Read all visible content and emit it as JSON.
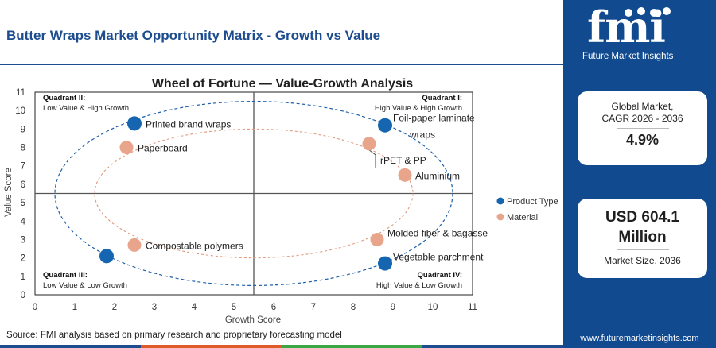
{
  "header": {
    "title": "Butter Wraps Market Opportunity Matrix - Growth vs Value"
  },
  "chart_data": {
    "type": "scatter",
    "title": "Wheel of Fortune — Value-Growth Analysis",
    "xlabel": "Growth Score",
    "ylabel": "Value Score",
    "xlim": [
      0,
      11
    ],
    "ylim": [
      0,
      11
    ],
    "x_ticks": [
      "0",
      "1",
      "2",
      "3",
      "4",
      "5",
      "6",
      "7",
      "8",
      "9",
      "10",
      "11"
    ],
    "y_ticks": [
      "0",
      "1",
      "2",
      "3",
      "4",
      "5",
      "6",
      "7",
      "8",
      "9",
      "10",
      "11"
    ],
    "divider_x": 5.5,
    "divider_y": 5.5,
    "grid": false,
    "legend_position": "right",
    "series": [
      {
        "name": "Product Type",
        "color": "#1565b0",
        "points": [
          {
            "label": "Printed brand wraps",
            "x": 2.5,
            "y": 9.3
          },
          {
            "label": "Foil-paper laminate wraps",
            "x": 8.8,
            "y": 9.2
          },
          {
            "label": "Compostable polymers",
            "x": 1.8,
            "y": 2.1
          },
          {
            "label": "Vegetable parchment",
            "x": 8.8,
            "y": 1.7
          }
        ]
      },
      {
        "name": "Material",
        "color": "#e8a58c",
        "points": [
          {
            "label": "Paperboard",
            "x": 2.3,
            "y": 8.0
          },
          {
            "label": "rPET & PP",
            "x": 8.4,
            "y": 8.2
          },
          {
            "label": "Aluminium",
            "x": 9.3,
            "y": 6.5
          },
          {
            "label": "Compostable polymers",
            "x": 2.5,
            "y": 2.7
          },
          {
            "label": "Molded fiber & bagasse",
            "x": 8.6,
            "y": 3.0
          }
        ]
      }
    ],
    "quadrants": [
      {
        "name": "Quadrant II:",
        "desc": "Low Value & High Growth"
      },
      {
        "name": "Quadrant I:",
        "desc": "High Value & High Growth"
      },
      {
        "name": "Quadrant III:",
        "desc": "Low Value & Low Growth"
      },
      {
        "name": "Quadrant IV:",
        "desc": "High Value & Low Growth"
      }
    ]
  },
  "sidebar": {
    "logo_text": "fmi",
    "logo_subtitle": "Future Market Insights",
    "cagr_label_line1": "Global Market,",
    "cagr_label_line2": "CAGR 2026 - 2036",
    "cagr_value": "4.9%",
    "size_value_line1": "USD 604.1",
    "size_value_line2": "Million",
    "size_label": "Market Size, 2036",
    "website": "www.futuremarketinsights.com"
  },
  "footer": {
    "source": "Source: FMI analysis based on primary research and proprietary forecasting model"
  },
  "colors": {
    "brand_blue": "#114a8f",
    "title_blue": "#1d4d8f",
    "product_type": "#1565b0",
    "material": "#e8a58c",
    "stripe": [
      "#1d4d8f",
      "#e05a2a",
      "#3aa745",
      "#1d4d8f"
    ]
  }
}
